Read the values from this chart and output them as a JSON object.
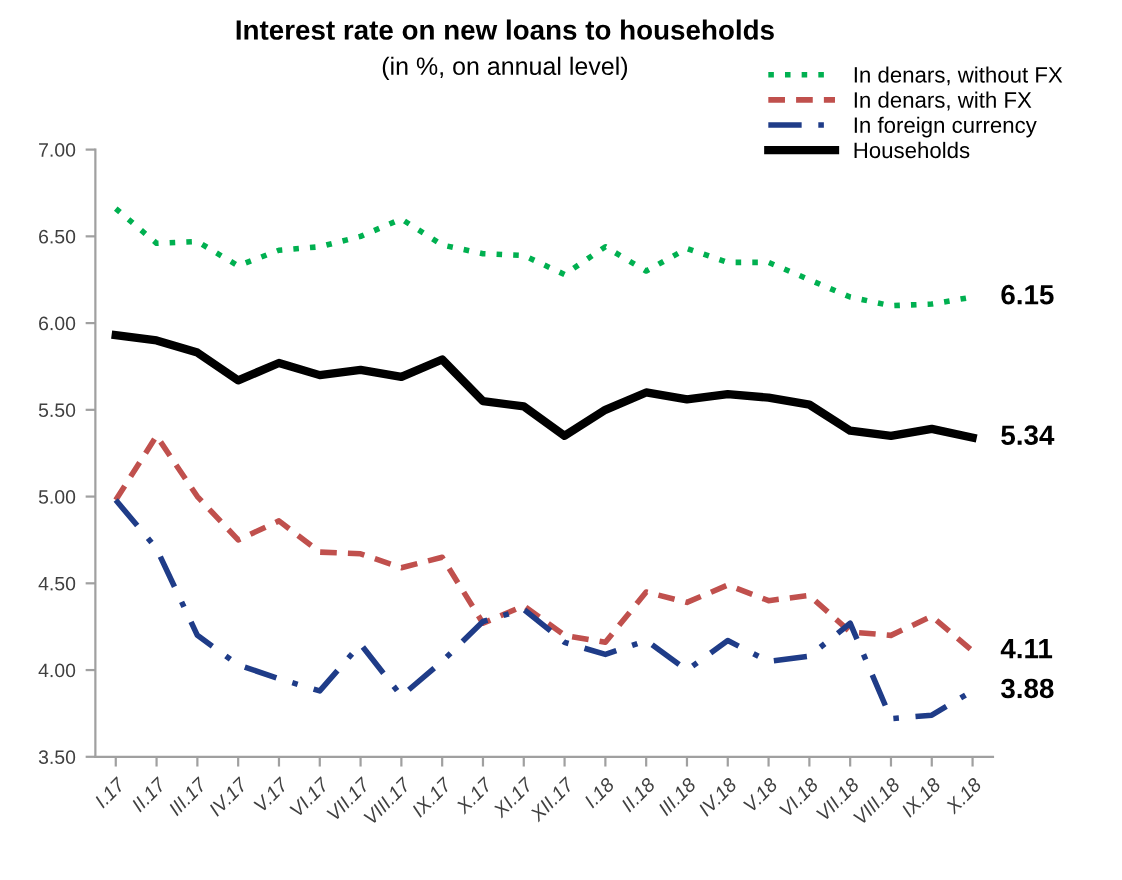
{
  "chart_data": {
    "type": "line",
    "title": "Interest rate on new loans to households",
    "subtitle": "(in %, on annual level)",
    "categories": [
      "I.17",
      "II.17",
      "III.17",
      "IV.17",
      "V.17",
      "VI.17",
      "VII.17",
      "VIII.17",
      "IX.17",
      "X.17",
      "XI.17",
      "XII.17",
      "I.18",
      "II.18",
      "III.18",
      "IV.18",
      "V.18",
      "VI.18",
      "VII.18",
      "VIII.18",
      "IX.18",
      "X.18"
    ],
    "series": [
      {
        "name": "In denars, without FX",
        "color": "#00b050",
        "line_style": "dotted",
        "values": [
          6.66,
          6.46,
          6.47,
          6.33,
          6.42,
          6.44,
          6.5,
          6.6,
          6.45,
          6.4,
          6.39,
          6.28,
          6.44,
          6.3,
          6.43,
          6.35,
          6.35,
          6.25,
          6.15,
          6.1,
          6.11,
          6.15
        ],
        "value_labels": [
          null,
          null,
          null,
          null,
          null,
          null,
          null,
          null,
          null,
          null,
          null,
          null,
          null,
          null,
          null,
          null,
          null,
          null,
          null,
          null,
          null,
          "6.15"
        ]
      },
      {
        "name": "In denars, with FX",
        "color": "#c0504d",
        "line_style": "dashed",
        "values": [
          4.98,
          5.35,
          5.0,
          4.75,
          4.86,
          4.68,
          4.67,
          4.59,
          4.65,
          4.27,
          4.37,
          4.2,
          4.16,
          4.45,
          4.39,
          4.49,
          4.4,
          4.43,
          4.22,
          4.2,
          4.31,
          4.11
        ],
        "value_labels": [
          null,
          null,
          null,
          null,
          null,
          null,
          null,
          null,
          null,
          null,
          null,
          null,
          null,
          null,
          null,
          null,
          null,
          null,
          null,
          null,
          null,
          "4.11"
        ]
      },
      {
        "name": "In foreign currency",
        "color": "#1f3c88",
        "line_style": "dashdot",
        "values": [
          4.98,
          4.7,
          4.2,
          4.03,
          3.95,
          3.88,
          4.15,
          3.85,
          4.05,
          4.28,
          4.35,
          4.16,
          4.09,
          4.17,
          4.0,
          4.17,
          4.05,
          4.08,
          4.27,
          3.72,
          3.74,
          3.88
        ],
        "value_labels": [
          null,
          null,
          null,
          null,
          null,
          null,
          null,
          null,
          null,
          null,
          null,
          null,
          null,
          null,
          null,
          null,
          null,
          null,
          null,
          null,
          null,
          "3.88"
        ]
      },
      {
        "name": "Households",
        "color": "#000000",
        "line_style": "solid",
        "values": [
          5.93,
          5.9,
          5.83,
          5.67,
          5.77,
          5.7,
          5.73,
          5.69,
          5.79,
          5.55,
          5.52,
          5.35,
          5.5,
          5.6,
          5.56,
          5.59,
          5.57,
          5.53,
          5.38,
          5.35,
          5.39,
          5.34
        ],
        "value_labels": [
          null,
          null,
          null,
          null,
          null,
          null,
          null,
          null,
          null,
          null,
          null,
          null,
          null,
          null,
          null,
          null,
          null,
          null,
          null,
          null,
          null,
          "5.34"
        ]
      }
    ],
    "ylim": [
      3.5,
      7.0
    ],
    "yticks": [
      "3.50",
      "4.00",
      "4.50",
      "5.00",
      "5.50",
      "6.00",
      "6.50",
      "7.00"
    ],
    "grid": false,
    "legend": "top right",
    "marker": "none"
  }
}
